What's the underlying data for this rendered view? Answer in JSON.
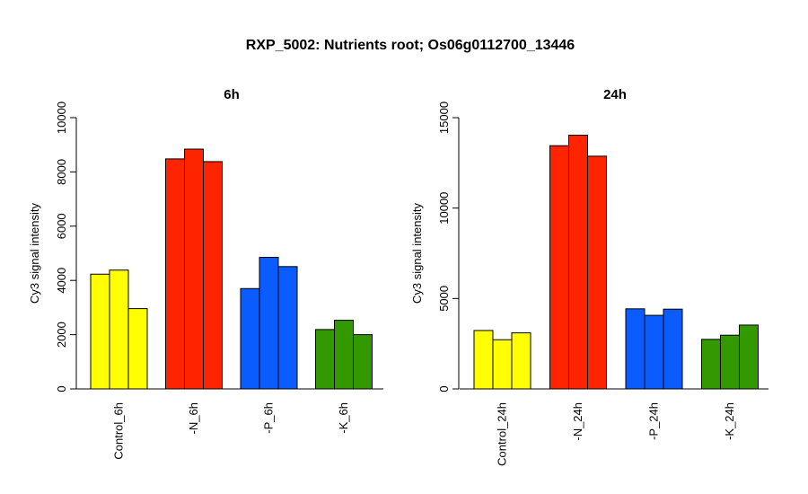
{
  "title": "RXP_5002: Nutrients root; Os06g0112700_13446",
  "chart_data": [
    {
      "type": "bar",
      "title": "6h",
      "ylabel": "Cy3 signal intensity",
      "ylim": [
        0,
        10000
      ],
      "yticks": [
        0,
        2000,
        4000,
        6000,
        8000,
        10000
      ],
      "categories": [
        "Control_6h",
        "-N_6h",
        "-P_6h",
        "-K_6h"
      ],
      "colors": [
        "#ffff00",
        "#ff2400",
        "#0a5cff",
        "#339900"
      ],
      "values": [
        [
          4230,
          4380,
          2960
        ],
        [
          8480,
          8840,
          8380
        ],
        [
          3700,
          4850,
          4510
        ],
        [
          2190,
          2530,
          2000
        ]
      ]
    },
    {
      "type": "bar",
      "title": "24h",
      "ylabel": "Cy3 signal intensity",
      "ylim": [
        0,
        15000
      ],
      "yticks": [
        0,
        5000,
        10000,
        15000
      ],
      "categories": [
        "Control_24h",
        "-N_24h",
        "-P_24h",
        "-K_24h"
      ],
      "colors": [
        "#ffff00",
        "#ff2400",
        "#0a5cff",
        "#339900"
      ],
      "values": [
        [
          3230,
          2720,
          3100
        ],
        [
          13450,
          14030,
          12870
        ],
        [
          4430,
          4070,
          4410
        ],
        [
          2740,
          2970,
          3530
        ]
      ]
    }
  ]
}
